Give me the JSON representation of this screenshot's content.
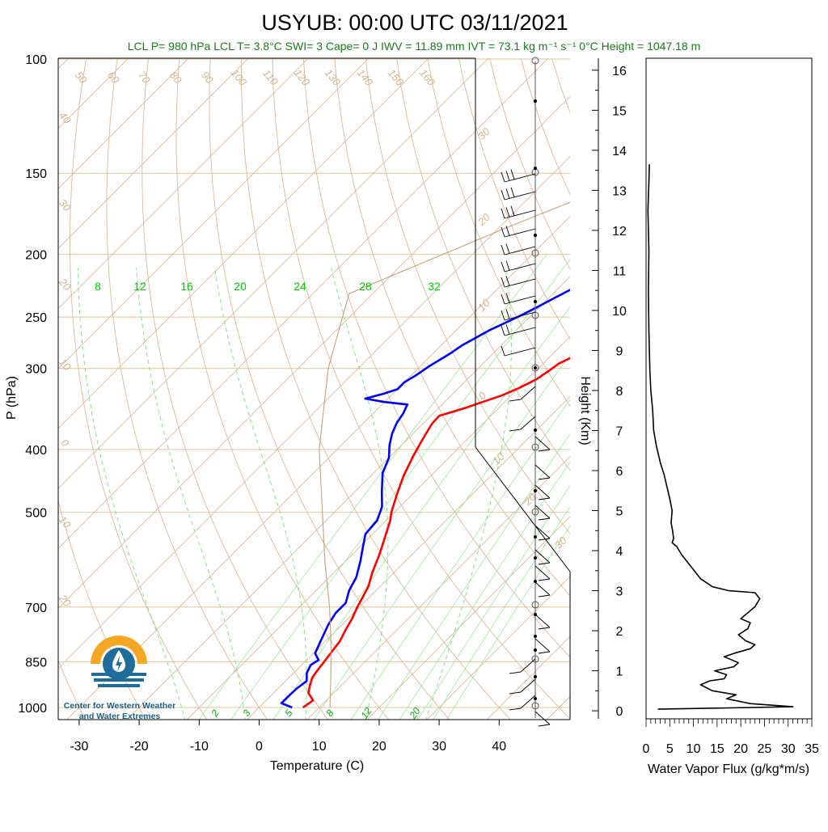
{
  "header": {
    "title": "USYUB: 00:00 UTC 03/11/2021",
    "subtitle": "LCL P= 980 hPa  LCL T= 3.8°C  SWI= 3  Cape= 0 J  IWV = 11.89 mm  IVT = 73.1 kg m⁻¹ s⁻¹  0°C Height = 1047.18 m"
  },
  "logo": {
    "line1": "Center for Western Weather",
    "line2": "and Water Extremes",
    "colors": {
      "orange": "#f5a623",
      "blue": "#1f6d9a"
    }
  },
  "chart_data": [
    {
      "type": "line",
      "title": "USYUB: 00:00 UTC 03/11/2021",
      "xlabel": "Temperature (C)",
      "ylabel": "P (hPa)",
      "xlim": [
        -34,
        52
      ],
      "ylim": [
        1050,
        100
      ],
      "y_scale": "log",
      "x_ticks": [
        "-30",
        "-20",
        "-10",
        "0",
        "10",
        "20",
        "30",
        "40"
      ],
      "y_ticks": [
        "100",
        "150",
        "200",
        "250",
        "300",
        "400",
        "500",
        "700",
        "850",
        "1000"
      ],
      "dry_adiabat_labels": [
        "50",
        "60",
        "70",
        "80",
        "90",
        "100",
        "110",
        "120",
        "130",
        "140",
        "150",
        "160"
      ],
      "isotherm_labels_left": [
        "40",
        "30",
        "20",
        "10",
        "0",
        "10",
        "20"
      ],
      "isotherm_labels_right": [
        "30",
        "20",
        "10",
        "0",
        "10",
        "20",
        "30"
      ],
      "mixing_ratio_labels_upper": [
        "8",
        "12",
        "16",
        "20",
        "24",
        "28",
        "32"
      ],
      "mixing_ratio_labels_lower": [
        "2",
        "3",
        "5",
        "8",
        "12",
        "20"
      ],
      "series": [
        {
          "color": "#ff0000",
          "points": [
            [
              7.3,
              1000
            ],
            [
              7.8,
              975
            ],
            [
              5.8,
              950
            ],
            [
              4.8,
              925
            ],
            [
              3.9,
              900
            ],
            [
              3.5,
              875
            ],
            [
              3.2,
              850
            ],
            [
              2.8,
              820
            ],
            [
              2.4,
              790
            ],
            [
              1.5,
              760
            ],
            [
              0.7,
              730
            ],
            [
              -0.4,
              700
            ],
            [
              -1.0,
              680
            ],
            [
              -2.0,
              650
            ],
            [
              -3.6,
              620
            ],
            [
              -5.5,
              580
            ],
            [
              -7.5,
              545
            ],
            [
              -9.3,
              515
            ],
            [
              -10.5,
              500
            ],
            [
              -12.5,
              470
            ],
            [
              -14.5,
              440
            ],
            [
              -16.2,
              410
            ],
            [
              -17.5,
              385
            ],
            [
              -18.5,
              365
            ],
            [
              -18.6,
              355
            ],
            [
              -17.0,
              350
            ],
            [
              -15.5,
              345
            ],
            [
              -13.7,
              338
            ],
            [
              -11.5,
              330
            ],
            [
              -10.0,
              322
            ],
            [
              -8.5,
              312
            ],
            [
              -7.8,
              302
            ],
            [
              -7.4,
              295
            ],
            [
              -6.0,
              287
            ],
            [
              -4.5,
              281
            ],
            [
              -2.0,
              275
            ],
            [
              -0.5,
              270
            ],
            [
              0.5,
              264
            ],
            [
              1.5,
              258
            ],
            [
              3.0,
              252
            ],
            [
              3.8,
              245
            ],
            [
              4.2,
              238
            ],
            [
              4.0,
              232
            ],
            [
              5.0,
              225
            ],
            [
              6.3,
              215
            ],
            [
              7.4,
              205
            ],
            [
              8.0,
              197
            ],
            [
              8.1,
              190
            ],
            [
              9.0,
              182
            ],
            [
              9.4,
              175
            ],
            [
              10.5,
              168
            ],
            [
              11.2,
              161
            ],
            [
              12.8,
              155
            ],
            [
              13.6,
              151
            ]
          ]
        },
        {
          "color": "#0000ff",
          "points": [
            [
              5.5,
              1000
            ],
            [
              3.0,
              985
            ],
            [
              3.0,
              960
            ],
            [
              3.1,
              935
            ],
            [
              3.5,
              910
            ],
            [
              2.2,
              885
            ],
            [
              1.5,
              860
            ],
            [
              2.0,
              845
            ],
            [
              0.3,
              825
            ],
            [
              -0.5,
              800
            ],
            [
              -1.3,
              775
            ],
            [
              -2.3,
              745
            ],
            [
              -3.0,
              715
            ],
            [
              -3.0,
              690
            ],
            [
              -4.5,
              660
            ],
            [
              -5.5,
              630
            ],
            [
              -7.5,
              595
            ],
            [
              -9.5,
              565
            ],
            [
              -11.2,
              540
            ],
            [
              -11.5,
              515
            ],
            [
              -13.0,
              490
            ],
            [
              -15.5,
              465
            ],
            [
              -18.5,
              435
            ],
            [
              -20.0,
              412
            ],
            [
              -22.0,
              394
            ],
            [
              -23.5,
              378
            ],
            [
              -24.5,
              364
            ],
            [
              -25.0,
              352
            ],
            [
              -25.8,
              341
            ],
            [
              -30.0,
              338
            ],
            [
              -33.8,
              334
            ],
            [
              -31.5,
              328
            ],
            [
              -30.0,
              323
            ],
            [
              -30.0,
              315
            ],
            [
              -29.2,
              307
            ],
            [
              -28.5,
              297
            ],
            [
              -27.2,
              285
            ],
            [
              -26.5,
              276
            ],
            [
              -25.5,
              269
            ],
            [
              -24.5,
              262
            ],
            [
              -22.0,
              250
            ],
            [
              -20.5,
              242
            ],
            [
              -19.3,
              235
            ],
            [
              -18.0,
              228
            ],
            [
              -16.8,
              222
            ],
            [
              -14.5,
              212
            ],
            [
              -12.8,
              203
            ],
            [
              -11.3,
              195
            ],
            [
              -10.8,
              186
            ],
            [
              -9.8,
              178
            ],
            [
              -8.8,
              170
            ],
            [
              -7.8,
              162
            ],
            [
              -6.4,
              155
            ],
            [
              -5.3,
              150
            ]
          ]
        },
        {
          "color": "#c4a27c",
          "points": [
            [
              11.8,
              1000
            ],
            [
              7.0,
              900
            ],
            [
              1.5,
              800
            ],
            [
              -5.0,
              700
            ],
            [
              -13.0,
              600
            ],
            [
              -22.0,
              500
            ],
            [
              -33.0,
              400
            ],
            [
              -45.0,
              300
            ],
            [
              -54.0,
              230
            ],
            [
              -38.0,
              180
            ],
            [
              -25.0,
              150
            ],
            [
              -11.0,
              120
            ],
            [
              -2.0,
              102
            ]
          ]
        }
      ]
    },
    {
      "type": "line",
      "xlabel": "Water Vapor Flux (g/kg*m/s)",
      "ylabel": "Height (Km)",
      "xlim": [
        0,
        35
      ],
      "ylim": [
        -0.2,
        16.3
      ],
      "x_ticks": [
        "0",
        "5",
        "10",
        "15",
        "20",
        "25",
        "30",
        "35"
      ],
      "y_ticks": [
        "0",
        "1",
        "2",
        "3",
        "4",
        "5",
        "6",
        "7",
        "8",
        "9",
        "10",
        "11",
        "12",
        "13",
        "14",
        "15",
        "16"
      ],
      "series": [
        {
          "color": "#000000",
          "points": [
            [
              2.5,
              0.04
            ],
            [
              31.0,
              0.1
            ],
            [
              22.0,
              0.18
            ],
            [
              17.0,
              0.3
            ],
            [
              19.0,
              0.4
            ],
            [
              14.0,
              0.5
            ],
            [
              11.5,
              0.65
            ],
            [
              13.5,
              0.75
            ],
            [
              16.5,
              0.8
            ],
            [
              17.0,
              0.9
            ],
            [
              14.5,
              1.0
            ],
            [
              18.5,
              1.1
            ],
            [
              19.5,
              1.2
            ],
            [
              17.5,
              1.3
            ],
            [
              16.5,
              1.35
            ],
            [
              19.0,
              1.45
            ],
            [
              22.0,
              1.55
            ],
            [
              23.0,
              1.65
            ],
            [
              21.0,
              1.75
            ],
            [
              19.5,
              1.9
            ],
            [
              21.5,
              2.05
            ],
            [
              22.0,
              2.2
            ],
            [
              20.0,
              2.3
            ],
            [
              21.5,
              2.45
            ],
            [
              23.0,
              2.6
            ],
            [
              24.0,
              2.8
            ],
            [
              23.0,
              2.95
            ],
            [
              17.5,
              3.0
            ],
            [
              14.0,
              3.1
            ],
            [
              11.5,
              3.3
            ],
            [
              9.5,
              3.6
            ],
            [
              7.5,
              3.9
            ],
            [
              6.5,
              4.1
            ],
            [
              5.5,
              4.2
            ],
            [
              5.8,
              4.3
            ],
            [
              5.6,
              4.5
            ],
            [
              5.3,
              4.7
            ],
            [
              5.5,
              5.0
            ],
            [
              5.0,
              5.3
            ],
            [
              4.4,
              5.6
            ],
            [
              3.8,
              5.9
            ],
            [
              3.0,
              6.2
            ],
            [
              2.2,
              6.6
            ],
            [
              1.6,
              7.0
            ],
            [
              1.4,
              7.5
            ],
            [
              1.0,
              8.0
            ],
            [
              0.8,
              8.5
            ],
            [
              0.6,
              9.5
            ],
            [
              0.5,
              10.5
            ],
            [
              0.6,
              11.5
            ],
            [
              0.4,
              12.5
            ],
            [
              0.6,
              13.2
            ],
            [
              0.7,
              13.65
            ]
          ]
        }
      ]
    }
  ]
}
